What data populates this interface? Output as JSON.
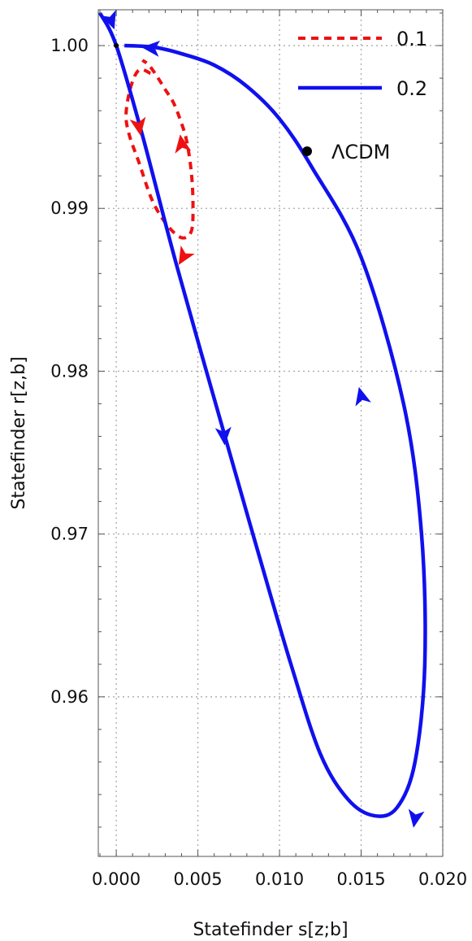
{
  "chart_data": {
    "type": "line",
    "title": "",
    "xlabel": "Statefinder s[z;b]",
    "ylabel": "Statefinder r[z,b]",
    "xlim": [
      -0.0011,
      0.02
    ],
    "ylim": [
      0.9502,
      1.0022
    ],
    "grid": true,
    "grid_style": "dotted",
    "legend_position": "top-right",
    "xticks": [
      0.0,
      0.005,
      0.01,
      0.015,
      0.02
    ],
    "xtick_labels": [
      "0.000",
      "0.005",
      "0.010",
      "0.015",
      "0.020"
    ],
    "yticks": [
      0.96,
      0.97,
      0.98,
      0.99,
      1.0
    ],
    "ytick_labels": [
      "0.96",
      "0.97",
      "0.98",
      "0.99",
      "1.00"
    ],
    "series": [
      {
        "name": "0.1",
        "color": "#ee1111",
        "style": "dashed",
        "x": [
          0.0021,
          0.0014,
          0.0009,
          0.0006,
          0.0008,
          0.0014,
          0.0022,
          0.0031,
          0.004,
          0.0046,
          0.0047,
          0.0046,
          0.0043,
          0.0039,
          0.0035,
          0.003,
          0.0025,
          0.002,
          0.0016
        ],
        "y": [
          0.9983,
          0.9985,
          0.9975,
          0.9958,
          0.9945,
          0.9928,
          0.9905,
          0.989,
          0.9882,
          0.9886,
          0.9902,
          0.9922,
          0.9942,
          0.9955,
          0.9965,
          0.9973,
          0.9981,
          0.9988,
          0.9991
        ]
      },
      {
        "name": "0.2",
        "color": "#1010ee",
        "style": "solid",
        "x": [
          -0.001,
          0.0,
          0.0016,
          0.0037,
          0.0068,
          0.0088,
          0.0107,
          0.0125,
          0.0142,
          0.0158,
          0.0172,
          0.0183,
          0.0189,
          0.0187,
          0.0176,
          0.015,
          0.012,
          0.01,
          0.008,
          0.006,
          0.004,
          0.0023,
          0.0005
        ],
        "y": [
          1.002,
          1.0,
          0.9945,
          0.9865,
          0.9755,
          0.9685,
          0.962,
          0.9565,
          0.9537,
          0.9527,
          0.9532,
          0.956,
          0.962,
          0.97,
          0.978,
          0.987,
          0.9925,
          0.9955,
          0.9975,
          0.9988,
          0.9995,
          0.9999,
          1.0
        ]
      }
    ],
    "points": [
      {
        "name": "ΛCDM",
        "x": 0.0,
        "y": 1.0,
        "color": "#000000"
      }
    ],
    "arrows": [
      {
        "series": "0.2",
        "x": -0.0003,
        "y": 1.0015,
        "dx": 0.0004,
        "dy": -0.0011
      },
      {
        "series": "0.2",
        "x": 0.0021,
        "y": 0.99985,
        "dx": -0.0012,
        "dy": 0.0001
      },
      {
        "series": "0.2",
        "x": 0.0066,
        "y": 0.976,
        "dx": 0.0001,
        "dy": -0.0012
      },
      {
        "series": "0.2",
        "x": 0.015,
        "y": 0.9785,
        "dx": -0.0003,
        "dy": 0.0012
      },
      {
        "series": "0.2",
        "x": 0.0183,
        "y": 0.9525,
        "dx": -0.0002,
        "dy": -0.0012
      },
      {
        "series": "0.1",
        "x": 0.0014,
        "y": 0.995,
        "dx": 0.0002,
        "dy": -0.0012
      },
      {
        "series": "0.1",
        "x": 0.004,
        "y": 0.994,
        "dx": -0.0002,
        "dy": 0.0012
      },
      {
        "series": "0.1",
        "x": 0.0041,
        "y": 0.987,
        "dx": -0.0006,
        "dy": -0.001
      }
    ]
  }
}
